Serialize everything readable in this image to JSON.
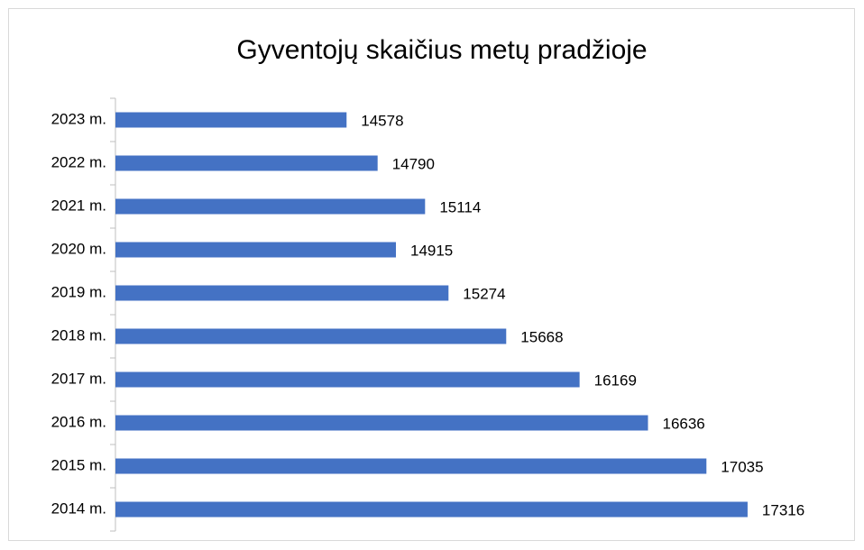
{
  "chart_data": {
    "type": "bar",
    "orientation": "horizontal",
    "title": "Gyventojų skaičius metų pradžioje",
    "categories": [
      "2023 m.",
      "2022 m.",
      "2021 m.",
      "2020 m.",
      "2019 m.",
      "2018 m.",
      "2017 m.",
      "2016 m.",
      "2015 m.",
      "2014 m."
    ],
    "values": [
      14578,
      14790,
      15114,
      14915,
      15274,
      15668,
      16169,
      16636,
      17035,
      17316
    ],
    "color": "#4472c4",
    "xlim": [
      13000,
      18000
    ],
    "grid": false
  }
}
